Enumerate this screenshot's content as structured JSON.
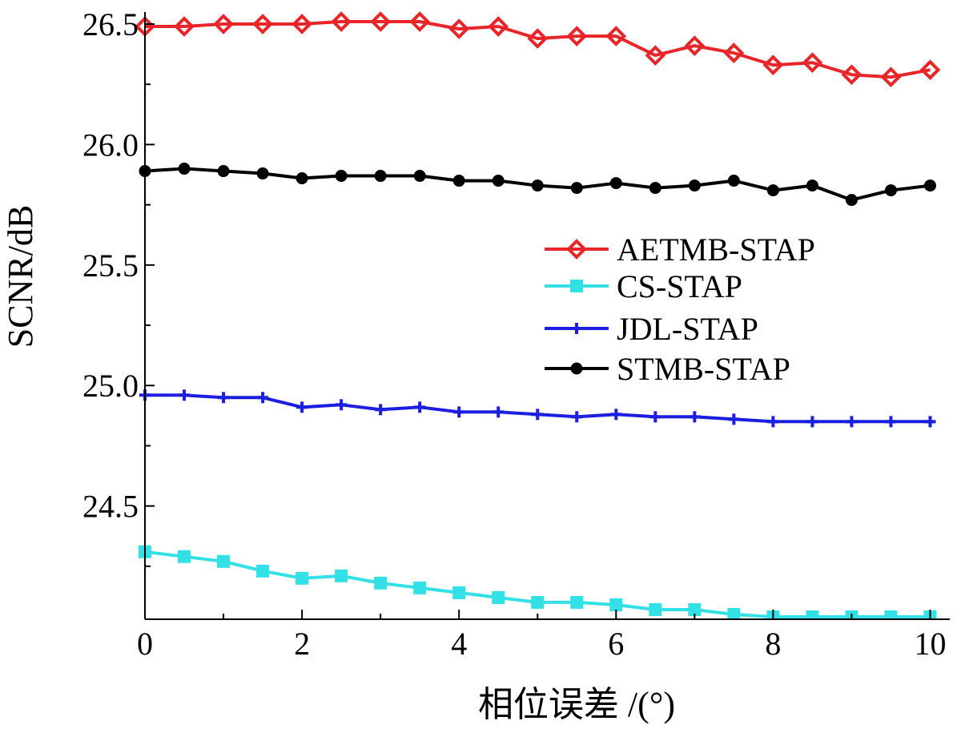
{
  "chart_data": {
    "type": "line",
    "title": "",
    "xlabel": "相位误差 /(°)",
    "ylabel": "SCNR/dB",
    "xlim": [
      0,
      10.25
    ],
    "ylim": [
      24.03,
      26.55
    ],
    "xticks": [
      0,
      2,
      4,
      6,
      8,
      10
    ],
    "xtick_labels": [
      "0",
      "2",
      "4",
      "6",
      "8",
      "10"
    ],
    "yticks": [
      24.5,
      25.0,
      25.5,
      26.0,
      26.5
    ],
    "ytick_labels": [
      "24.5",
      "25.0",
      "25.5",
      "26.0",
      "26.5"
    ],
    "grid": false,
    "legend_position": "center-right",
    "x": [
      0,
      0.5,
      1,
      1.5,
      2,
      2.5,
      3,
      3.5,
      4,
      4.5,
      5,
      5.5,
      6,
      6.5,
      7,
      7.5,
      8,
      8.5,
      9,
      9.5,
      10
    ],
    "series": [
      {
        "name": "AETMB-STAP",
        "color": "#e8262a",
        "marker": "diamond",
        "values": [
          26.49,
          26.49,
          26.5,
          26.5,
          26.5,
          26.51,
          26.51,
          26.51,
          26.48,
          26.49,
          26.44,
          26.45,
          26.45,
          26.37,
          26.41,
          26.38,
          26.33,
          26.34,
          26.29,
          26.28,
          26.31
        ]
      },
      {
        "name": "CS-STAP",
        "color": "#33e0e6",
        "marker": "square",
        "values": [
          24.31,
          24.29,
          24.27,
          24.23,
          24.2,
          24.21,
          24.18,
          24.16,
          24.14,
          24.12,
          24.1,
          24.1,
          24.09,
          24.07,
          24.07,
          24.05,
          24.04,
          24.04,
          24.04,
          24.04,
          24.04
        ]
      },
      {
        "name": "JDL-STAP",
        "color": "#1c1ee0",
        "marker": "plus",
        "values": [
          24.96,
          24.96,
          24.95,
          24.95,
          24.91,
          24.92,
          24.9,
          24.91,
          24.89,
          24.89,
          24.88,
          24.87,
          24.88,
          24.87,
          24.87,
          24.86,
          24.85,
          24.85,
          24.85,
          24.85,
          24.85
        ]
      },
      {
        "name": "STMB-STAP",
        "color": "#000000",
        "marker": "circle",
        "values": [
          25.89,
          25.9,
          25.89,
          25.88,
          25.86,
          25.87,
          25.87,
          25.87,
          25.85,
          25.85,
          25.83,
          25.82,
          25.84,
          25.82,
          25.83,
          25.85,
          25.81,
          25.83,
          25.77,
          25.81,
          25.83
        ]
      }
    ]
  }
}
